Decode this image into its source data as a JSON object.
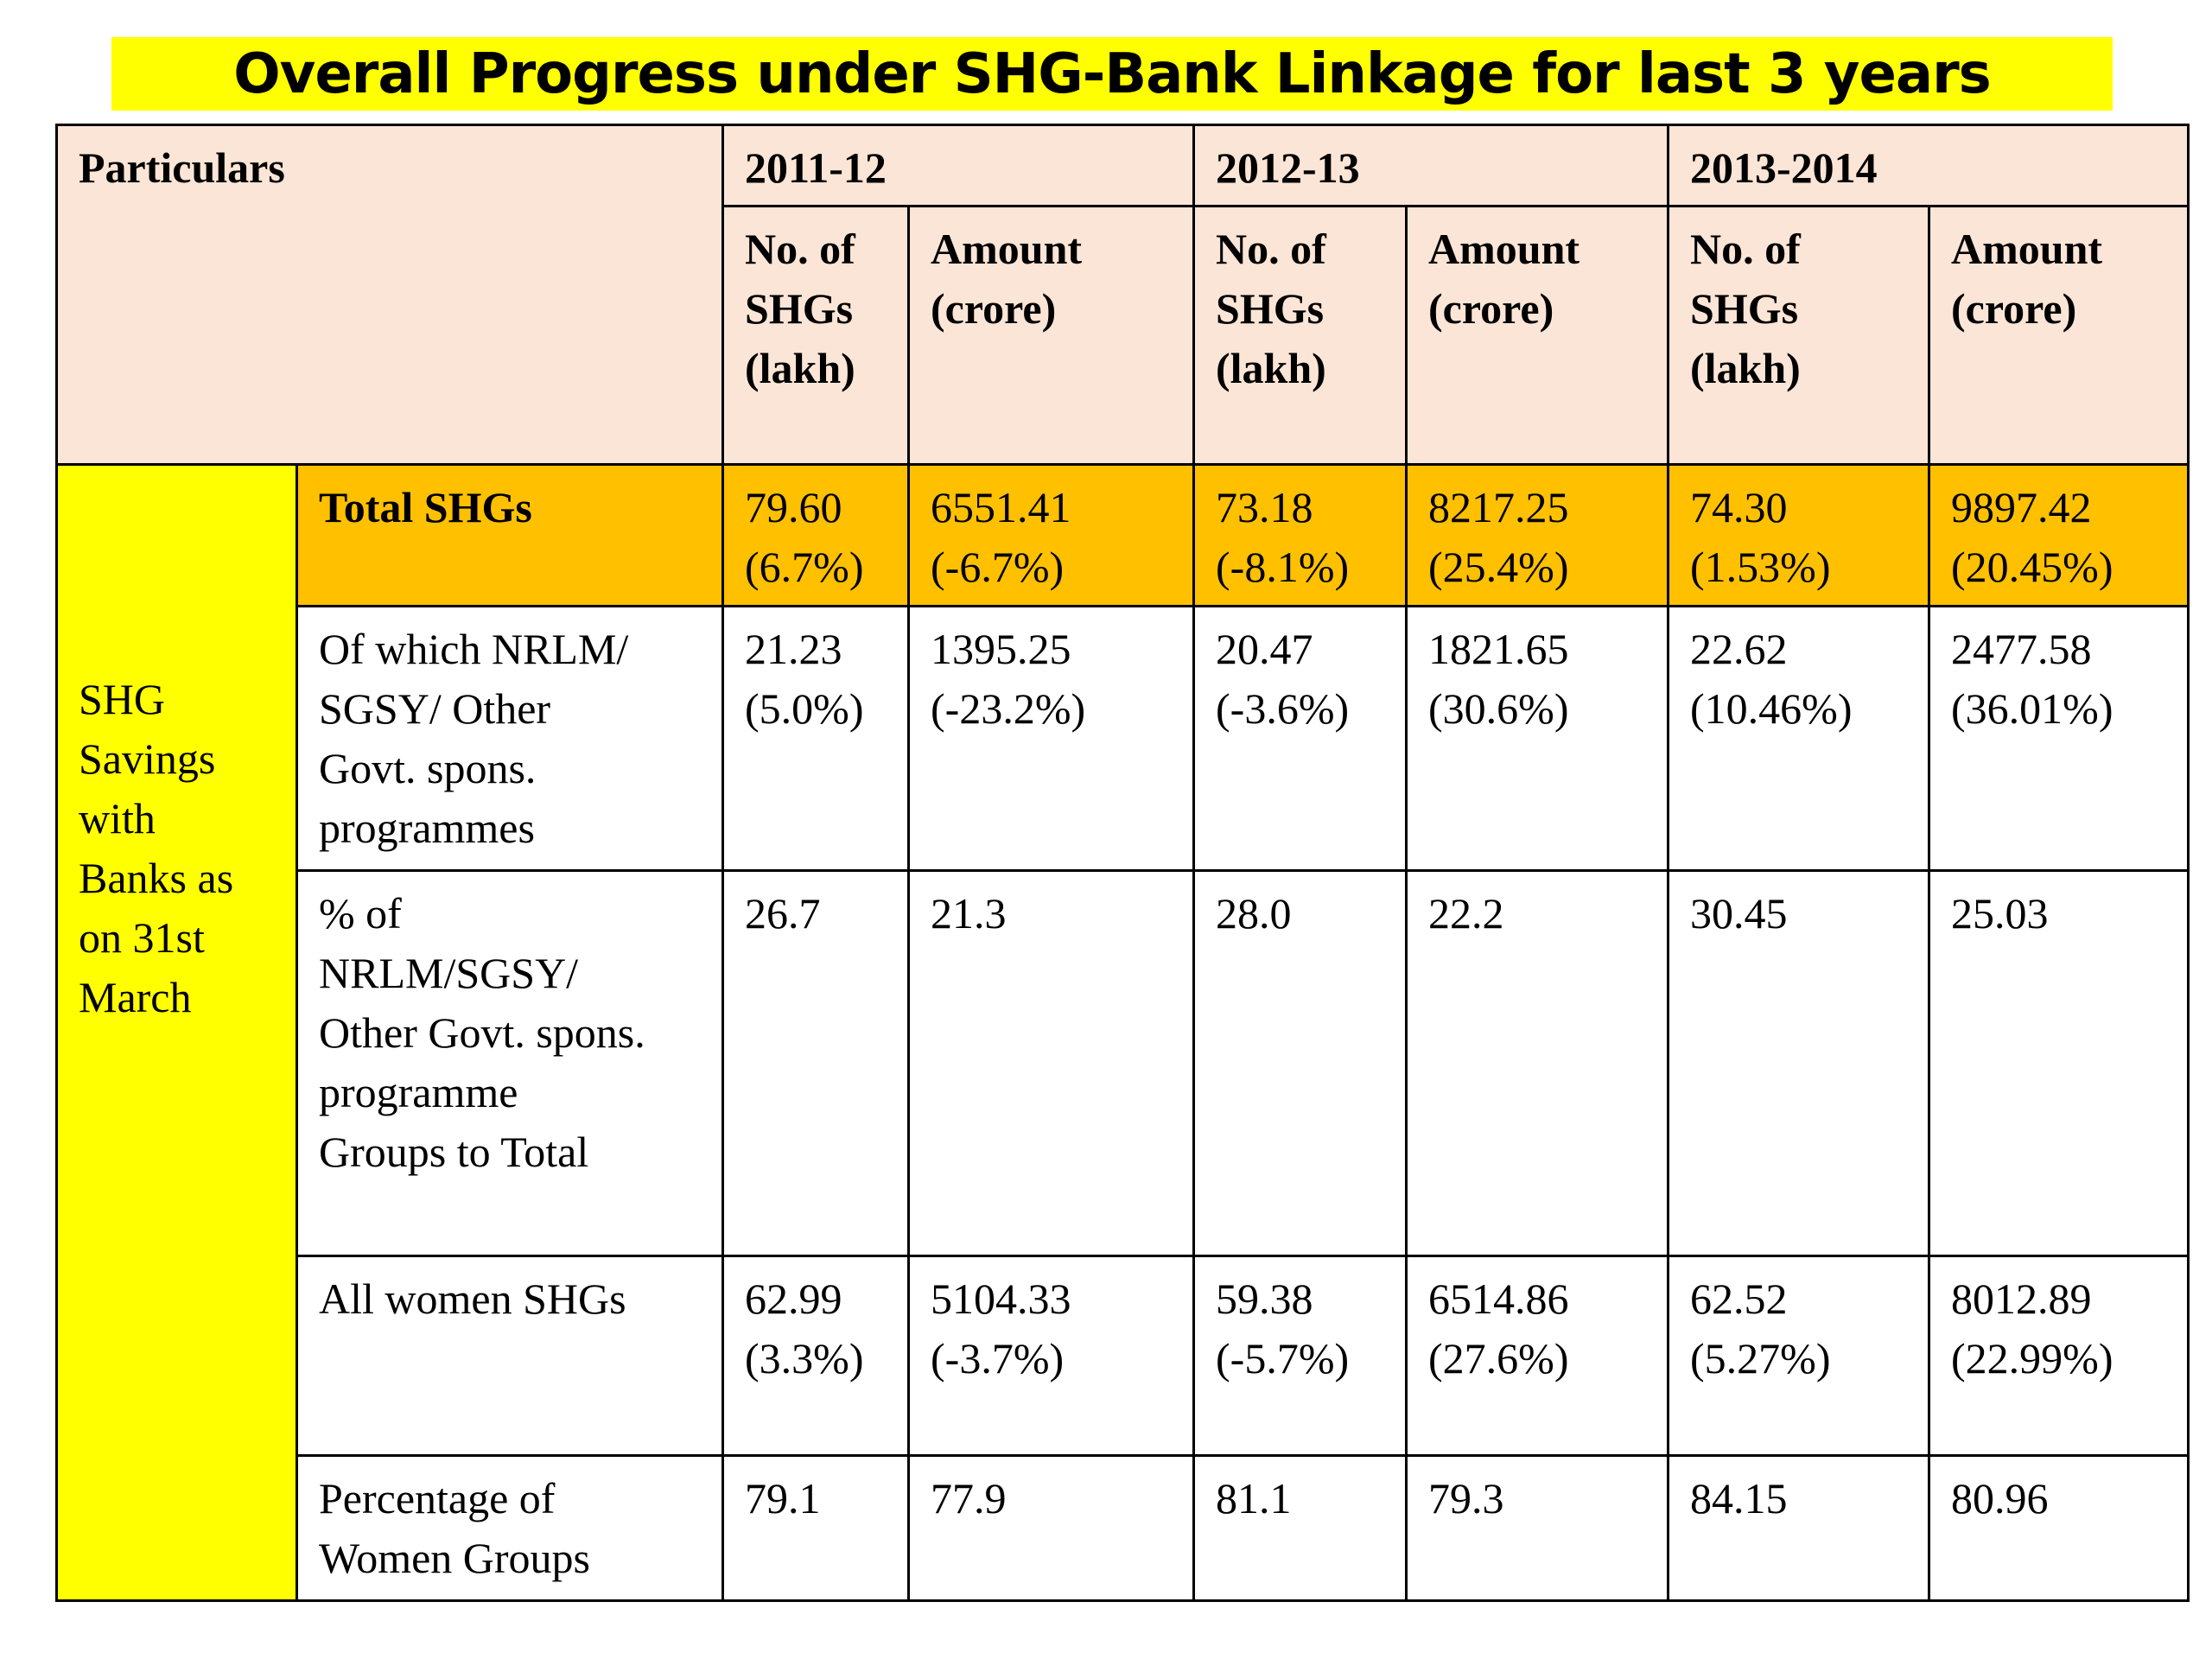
{
  "title": "Overall Progress under SHG-Bank Linkage for last 3 years",
  "colors": {
    "title_bg": "#ffff00",
    "header_bg": "#fbe5d6",
    "side_bg": "#ffff00",
    "total_row_bg": "#ffc000"
  },
  "table": {
    "particulars_label": "Particulars",
    "years": [
      "2011-12",
      "2012-13",
      "2013-2014"
    ],
    "sub_headers": {
      "count": [
        "No. of",
        "SHGs",
        "(lakh)"
      ],
      "amount": [
        "Amount",
        "(crore)"
      ]
    },
    "side_label": [
      "SHG",
      "Savings",
      "with",
      "Banks as",
      "on 31st",
      "March"
    ],
    "rows": [
      {
        "label": [
          "Total SHGs"
        ],
        "cells": [
          [
            "79.60",
            "(6.7%)"
          ],
          [
            "6551.41",
            "(-6.7%)"
          ],
          [
            "73.18",
            "(-8.1%)"
          ],
          [
            "8217.25",
            "(25.4%)"
          ],
          [
            "74.30",
            "(1.53%)"
          ],
          [
            "9897.42",
            "(20.45%)"
          ]
        ]
      },
      {
        "label": [
          "Of which NRLM/",
          "SGSY/ Other",
          "Govt. spons.",
          "programmes"
        ],
        "cells": [
          [
            "21.23",
            "(5.0%)"
          ],
          [
            "1395.25",
            "(-23.2%)"
          ],
          [
            "20.47",
            "(-3.6%)"
          ],
          [
            "1821.65",
            "(30.6%)"
          ],
          [
            "22.62",
            "(10.46%)"
          ],
          [
            "2477.58",
            "(36.01%)"
          ]
        ]
      },
      {
        "label": [
          "% of",
          "NRLM/SGSY/",
          "Other Govt. spons.",
          "programme",
          "Groups to Total"
        ],
        "cells": [
          [
            "26.7"
          ],
          [
            "21.3"
          ],
          [
            "28.0"
          ],
          [
            "22.2"
          ],
          [
            "30.45"
          ],
          [
            "25.03"
          ]
        ]
      },
      {
        "label": [
          "All women SHGs"
        ],
        "cells": [
          [
            "62.99",
            "(3.3%)"
          ],
          [
            "5104.33",
            "(-3.7%)"
          ],
          [
            "59.38",
            "(-5.7%)"
          ],
          [
            "6514.86",
            "(27.6%)"
          ],
          [
            "62.52",
            "(5.27%)"
          ],
          [
            "8012.89",
            "(22.99%)"
          ]
        ]
      },
      {
        "label": [
          "Percentage of",
          "Women Groups"
        ],
        "cells": [
          [
            "79.1"
          ],
          [
            "77.9"
          ],
          [
            "81.1"
          ],
          [
            "79.3"
          ],
          [
            "84.15"
          ],
          [
            "80.96"
          ]
        ]
      }
    ]
  }
}
